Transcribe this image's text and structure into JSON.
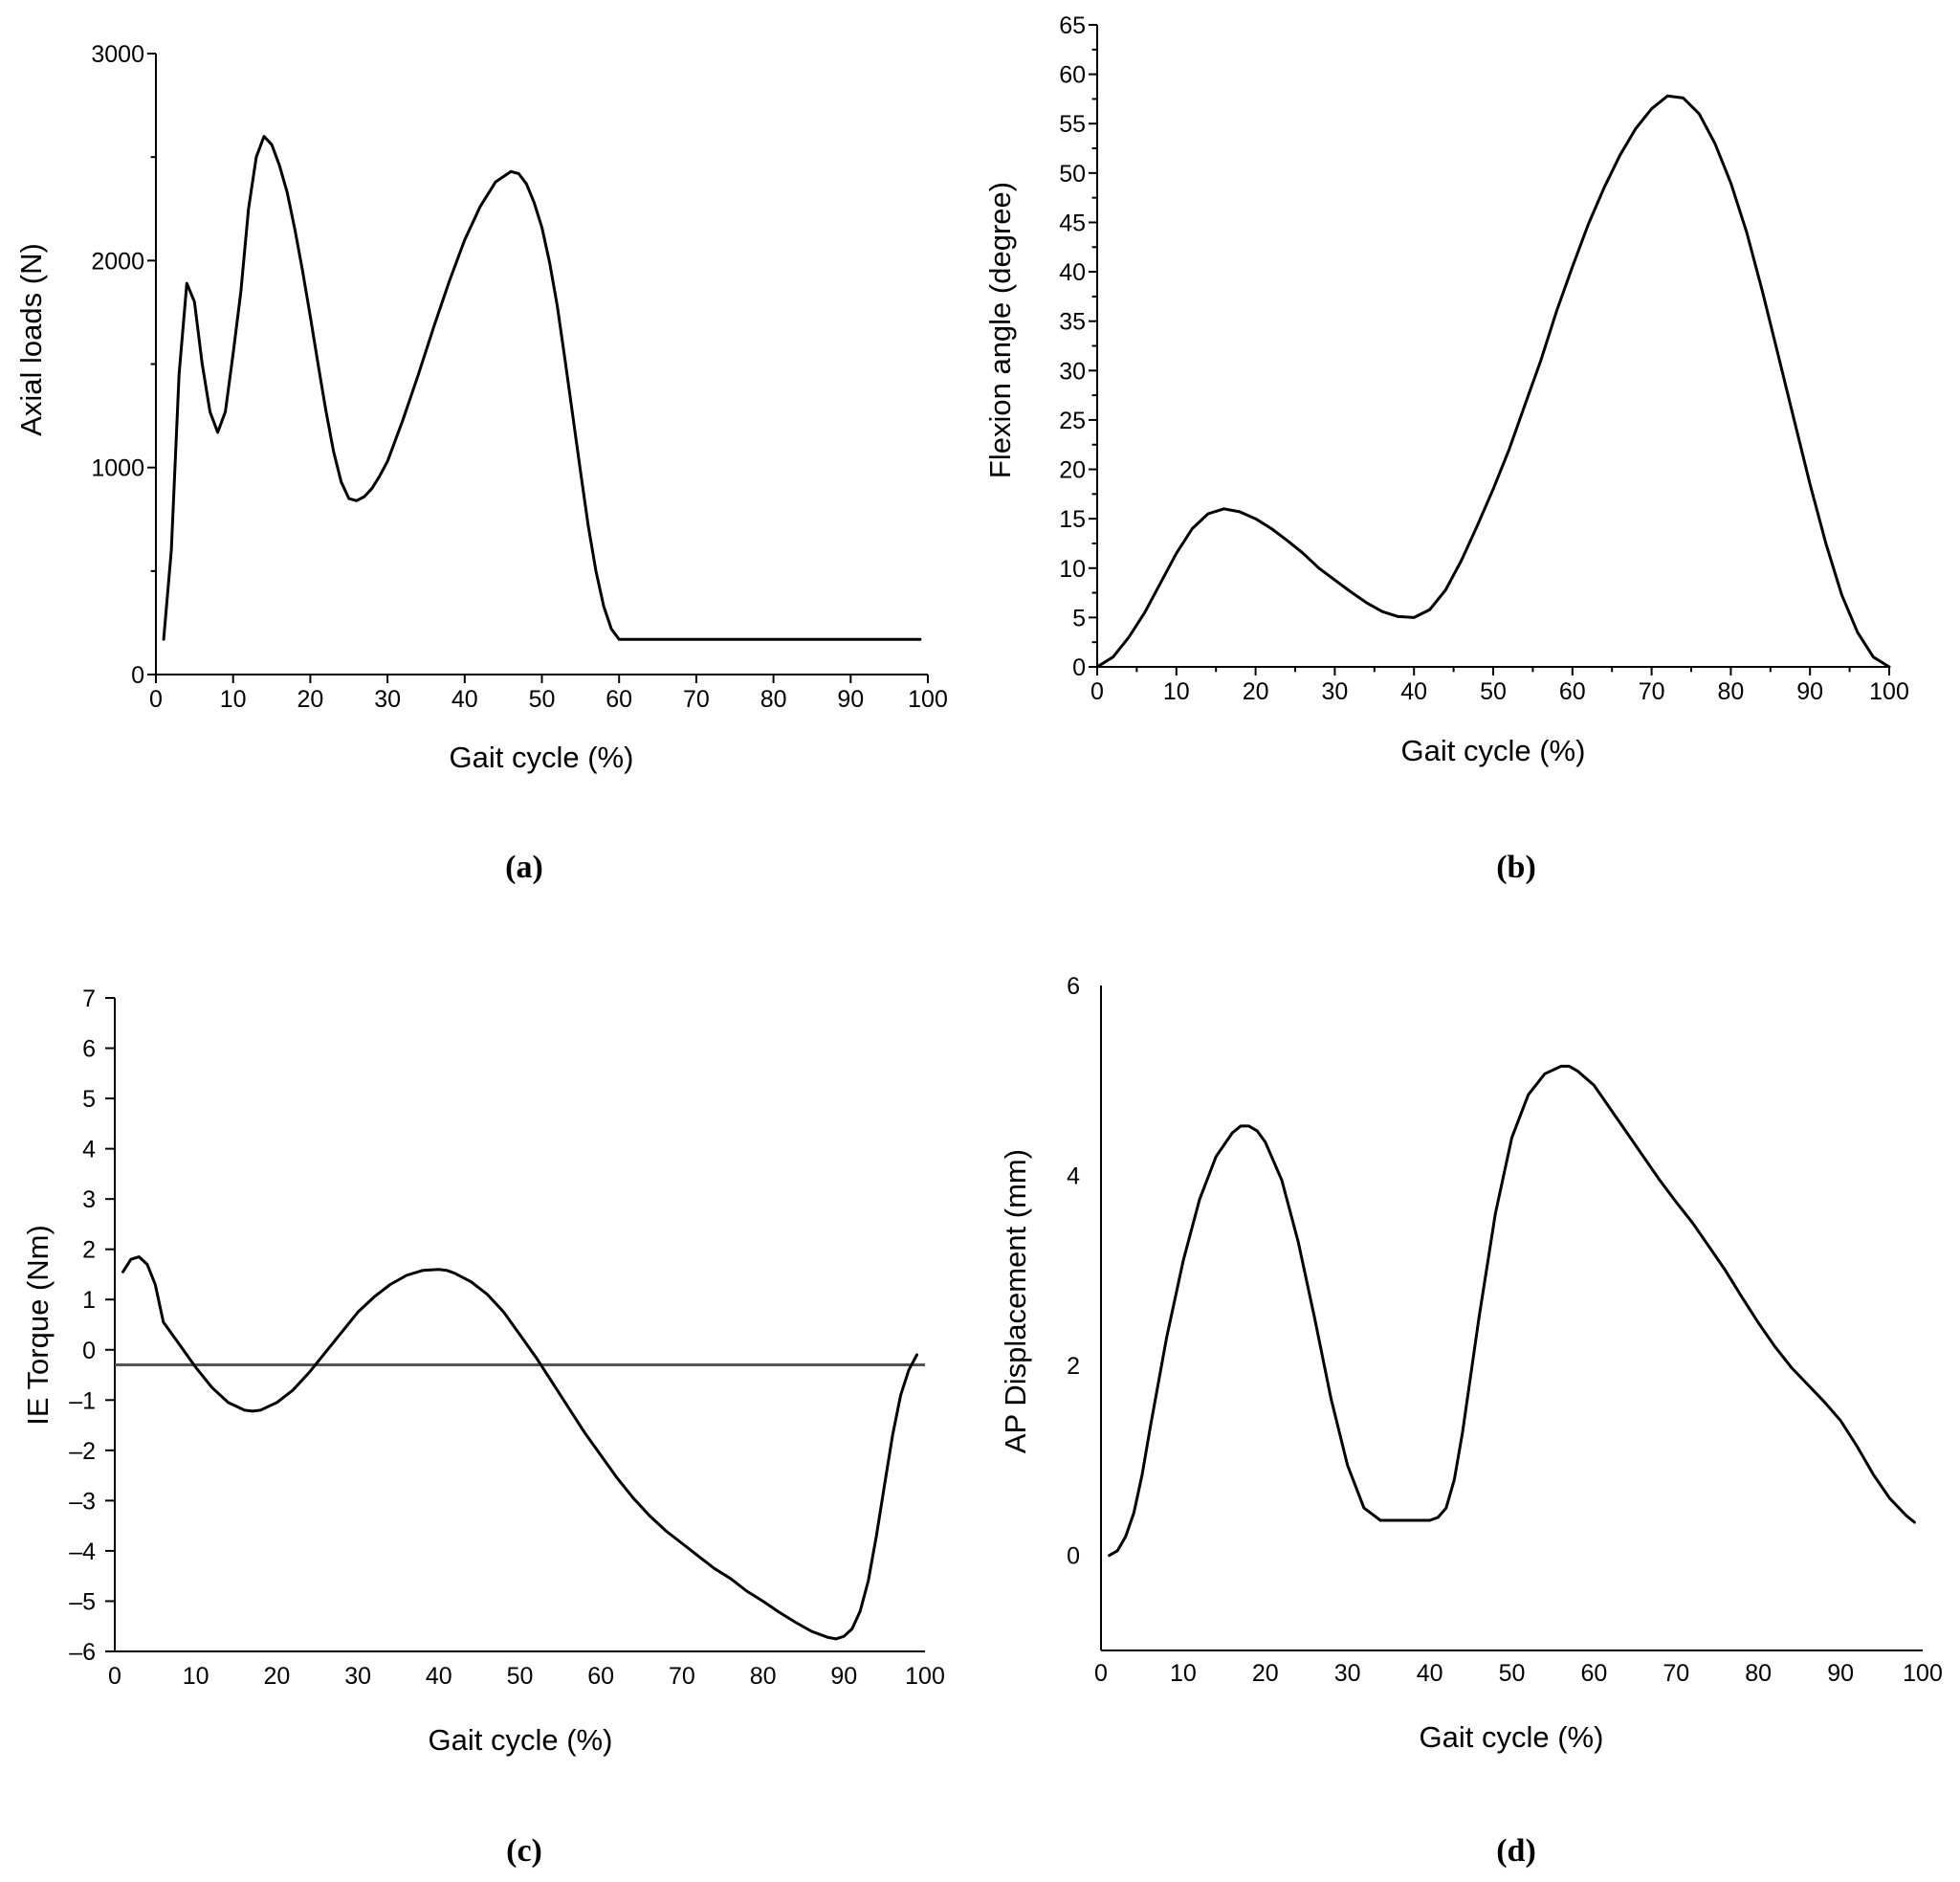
{
  "chart_data": [
    {
      "type": "line",
      "panel_label": "(a)",
      "xlabel": "Gait cycle (%)",
      "ylabel": "Axial loads (N)",
      "xlim": [
        0,
        100
      ],
      "ylim": [
        0,
        3000
      ],
      "xticks": [
        0,
        10,
        20,
        30,
        40,
        50,
        60,
        70,
        80,
        90,
        100
      ],
      "yticks": [
        0,
        1000,
        2000,
        3000
      ],
      "xtick_labels": [
        "0",
        "10",
        "20",
        "30",
        "40",
        "50",
        "60",
        "70",
        "80",
        "90",
        "100"
      ],
      "ytick_labels": [
        "0",
        "1000",
        "2000",
        "3000"
      ],
      "y_minor_step": 500,
      "series": [
        {
          "name": "Axial load",
          "x": [
            1,
            2,
            3,
            4,
            5,
            6,
            7,
            8,
            9,
            10,
            11,
            12,
            13,
            14,
            15,
            16,
            17,
            18,
            19,
            20,
            21,
            22,
            23,
            24,
            25,
            26,
            27,
            28,
            29,
            30,
            32,
            34,
            36,
            38,
            40,
            42,
            44,
            46,
            47,
            48,
            49,
            50,
            51,
            52,
            53,
            54,
            55,
            56,
            57,
            58,
            59,
            60,
            61,
            70,
            80,
            90,
            99
          ],
          "y": [
            170,
            600,
            1450,
            1890,
            1800,
            1500,
            1270,
            1170,
            1270,
            1550,
            1850,
            2250,
            2500,
            2600,
            2560,
            2460,
            2330,
            2150,
            1950,
            1730,
            1500,
            1280,
            1080,
            930,
            850,
            840,
            860,
            900,
            960,
            1030,
            1230,
            1450,
            1680,
            1900,
            2100,
            2260,
            2380,
            2430,
            2420,
            2370,
            2280,
            2160,
            1990,
            1780,
            1520,
            1250,
            980,
            720,
            500,
            330,
            220,
            170,
            170,
            170,
            170,
            170,
            170
          ]
        }
      ]
    },
    {
      "type": "line",
      "panel_label": "(b)",
      "xlabel": "Gait cycle (%)",
      "ylabel": "Flexion angle (degree)",
      "xlim": [
        0,
        100
      ],
      "ylim": [
        0,
        65
      ],
      "xticks": [
        0,
        10,
        20,
        30,
        40,
        50,
        60,
        70,
        80,
        90,
        100
      ],
      "yticks": [
        0,
        5,
        10,
        15,
        20,
        25,
        30,
        35,
        40,
        45,
        50,
        55,
        60,
        65
      ],
      "xtick_labels": [
        "0",
        "10",
        "20",
        "30",
        "40",
        "50",
        "60",
        "70",
        "80",
        "90",
        "100"
      ],
      "ytick_labels": [
        "0",
        "5",
        "10",
        "15",
        "20",
        "25",
        "30",
        "35",
        "40",
        "45",
        "50",
        "55",
        "60",
        "65"
      ],
      "x_minor_step": 5,
      "y_minor_step": 2.5,
      "series": [
        {
          "name": "Flexion angle",
          "x": [
            0,
            2,
            4,
            6,
            8,
            10,
            12,
            14,
            16,
            18,
            20,
            22,
            24,
            26,
            28,
            30,
            32,
            34,
            36,
            38,
            40,
            42,
            44,
            46,
            48,
            50,
            52,
            54,
            56,
            58,
            60,
            62,
            64,
            66,
            68,
            70,
            72,
            74,
            76,
            78,
            80,
            82,
            84,
            86,
            88,
            90,
            92,
            94,
            96,
            98,
            100
          ],
          "y": [
            0,
            1,
            3,
            5.5,
            8.5,
            11.5,
            14,
            15.5,
            16,
            15.7,
            15,
            14,
            12.8,
            11.5,
            10,
            8.8,
            7.6,
            6.5,
            5.6,
            5.1,
            5,
            5.8,
            7.8,
            10.8,
            14.3,
            18,
            22,
            26.5,
            31,
            36,
            40.5,
            44.8,
            48.5,
            51.8,
            54.5,
            56.5,
            57.8,
            57.6,
            56,
            53,
            49,
            44,
            38,
            31.5,
            25,
            18.5,
            12.5,
            7.3,
            3.5,
            1,
            0
          ]
        }
      ]
    },
    {
      "type": "line",
      "panel_label": "(c)",
      "xlabel": "Gait cycle (%)",
      "ylabel": "IE Torque (Nm)",
      "xlim": [
        0,
        100
      ],
      "ylim": [
        -6,
        7
      ],
      "xticks": [
        0,
        10,
        20,
        30,
        40,
        50,
        60,
        70,
        80,
        90,
        100
      ],
      "yticks": [
        -6,
        -5,
        -4,
        -3,
        -2,
        -1,
        0,
        1,
        2,
        3,
        4,
        5,
        6,
        7
      ],
      "xtick_labels": [
        "0",
        "10",
        "20",
        "30",
        "40",
        "50",
        "60",
        "70",
        "80",
        "90",
        "100"
      ],
      "ytick_labels": [
        "–6",
        "–5",
        "–4",
        "–3",
        "–2",
        "–1",
        "0",
        "1",
        "2",
        "3",
        "4",
        "5",
        "6",
        "7"
      ],
      "reference_line": {
        "y": -0.3,
        "x_range": [
          0,
          100
        ]
      },
      "series": [
        {
          "name": "IE Torque",
          "x": [
            1,
            2,
            3,
            4,
            5,
            6,
            8,
            10,
            12,
            14,
            16,
            17,
            18,
            20,
            22,
            24,
            26,
            28,
            30,
            32,
            34,
            36,
            38,
            40,
            41,
            42,
            44,
            46,
            48,
            50,
            52,
            54,
            56,
            58,
            60,
            62,
            64,
            66,
            68,
            70,
            72,
            74,
            76,
            78,
            80,
            82,
            84,
            86,
            88,
            89,
            90,
            91,
            92,
            93,
            94,
            95,
            96,
            97,
            98,
            99
          ],
          "y": [
            1.55,
            1.8,
            1.85,
            1.7,
            1.3,
            0.55,
            0.1,
            -0.35,
            -0.75,
            -1.05,
            -1.2,
            -1.22,
            -1.2,
            -1.05,
            -0.8,
            -0.45,
            -0.05,
            0.35,
            0.75,
            1.05,
            1.3,
            1.48,
            1.58,
            1.6,
            1.58,
            1.52,
            1.35,
            1.1,
            0.75,
            0.3,
            -0.15,
            -0.65,
            -1.15,
            -1.65,
            -2.1,
            -2.55,
            -2.95,
            -3.3,
            -3.6,
            -3.85,
            -4.1,
            -4.35,
            -4.55,
            -4.8,
            -5.0,
            -5.22,
            -5.42,
            -5.6,
            -5.72,
            -5.75,
            -5.7,
            -5.55,
            -5.2,
            -4.6,
            -3.7,
            -2.7,
            -1.7,
            -0.9,
            -0.4,
            -0.1
          ]
        }
      ]
    },
    {
      "type": "line",
      "panel_label": "(d)",
      "xlabel": "Gait cycle (%)",
      "ylabel": "AP Displacement (mm)",
      "xlim": [
        0,
        100
      ],
      "ylim": [
        -1,
        6
      ],
      "xticks": [
        0,
        10,
        20,
        30,
        40,
        50,
        60,
        70,
        80,
        90,
        100
      ],
      "yticks": [
        0,
        2,
        4,
        6
      ],
      "xtick_labels": [
        "0",
        "10",
        "20",
        "30",
        "40",
        "50",
        "60",
        "70",
        "80",
        "90",
        "100"
      ],
      "ytick_labels": [
        "0",
        "2",
        "4",
        "6"
      ],
      "series": [
        {
          "name": "AP Displacement",
          "x": [
            1,
            2,
            3,
            4,
            5,
            6,
            8,
            10,
            12,
            14,
            16,
            17,
            18,
            19,
            20,
            22,
            24,
            26,
            28,
            30,
            32,
            34,
            35,
            36,
            38,
            40,
            41,
            42,
            43,
            44,
            46,
            48,
            50,
            52,
            54,
            56,
            57,
            58,
            60,
            62,
            64,
            66,
            68,
            70,
            72,
            74,
            76,
            78,
            80,
            82,
            84,
            86,
            88,
            90,
            92,
            94,
            96,
            98,
            99
          ],
          "y": [
            0,
            0.05,
            0.2,
            0.45,
            0.85,
            1.35,
            2.3,
            3.1,
            3.75,
            4.2,
            4.45,
            4.52,
            4.52,
            4.47,
            4.35,
            3.95,
            3.3,
            2.5,
            1.65,
            0.95,
            0.5,
            0.37,
            0.37,
            0.37,
            0.37,
            0.37,
            0.4,
            0.5,
            0.8,
            1.3,
            2.5,
            3.6,
            4.4,
            4.85,
            5.07,
            5.15,
            5.15,
            5.1,
            4.95,
            4.7,
            4.45,
            4.2,
            3.95,
            3.72,
            3.5,
            3.25,
            3.0,
            2.72,
            2.45,
            2.2,
            1.98,
            1.8,
            1.62,
            1.42,
            1.15,
            0.85,
            0.6,
            0.42,
            0.35
          ]
        }
      ]
    }
  ]
}
